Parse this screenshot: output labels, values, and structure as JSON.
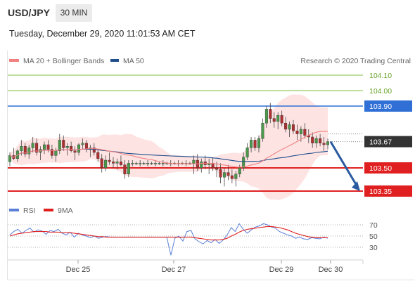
{
  "header": {
    "symbol": "USD/JPY",
    "timeframe": "30 MIN",
    "timestamp": "Tuesday, December 29, 2020 11:01:53 AM CET"
  },
  "legend": {
    "ma20_label": "MA 20 + Bollinger Bands",
    "ma50_label": "MA 50",
    "credit": "Research © 2020 Trading Central",
    "ma20_color": "#f08080",
    "ma50_color": "#1f4e8c"
  },
  "oscillator_legend": {
    "rsi_label": "RSI",
    "ma_label": "9MA",
    "rsi_color": "#5a7fd6",
    "ma_color": "#e02020"
  },
  "chart_data": {
    "type": "candlestick",
    "price_range": [
      103.25,
      104.15
    ],
    "levels": [
      {
        "value": "104.10",
        "color": "#7fbf3f",
        "kind": "target"
      },
      {
        "value": "104.00",
        "color": "#7fbf3f",
        "kind": "target"
      },
      {
        "value": "103.90",
        "color": "#2f6fd6",
        "kind": "pivot"
      },
      {
        "value": "103.67",
        "color": "#333333",
        "kind": "last"
      },
      {
        "value": "103.50",
        "color": "#e02020",
        "kind": "support"
      },
      {
        "value": "103.35",
        "color": "#e02020",
        "kind": "support"
      }
    ],
    "x_ticks": [
      "Dec 25",
      "Dec 27",
      "Dec 29",
      "Dec 30"
    ],
    "rsi_levels": [
      "70",
      "50",
      "30"
    ],
    "projection": {
      "from": 103.67,
      "to": 103.35
    },
    "candles": [
      [
        103.54,
        103.6,
        103.51,
        103.58
      ],
      [
        103.58,
        103.63,
        103.55,
        103.56
      ],
      [
        103.56,
        103.62,
        103.54,
        103.61
      ],
      [
        103.61,
        103.68,
        103.58,
        103.64
      ],
      [
        103.64,
        103.66,
        103.57,
        103.59
      ],
      [
        103.59,
        103.65,
        103.56,
        103.63
      ],
      [
        103.63,
        103.7,
        103.6,
        103.66
      ],
      [
        103.66,
        103.69,
        103.58,
        103.6
      ],
      [
        103.6,
        103.64,
        103.55,
        103.62
      ],
      [
        103.62,
        103.67,
        103.59,
        103.65
      ],
      [
        103.65,
        103.68,
        103.6,
        103.62
      ],
      [
        103.62,
        103.65,
        103.56,
        103.58
      ],
      [
        103.58,
        103.63,
        103.54,
        103.61
      ],
      [
        103.61,
        103.72,
        103.59,
        103.68
      ],
      [
        103.68,
        103.71,
        103.61,
        103.63
      ],
      [
        103.63,
        103.66,
        103.58,
        103.64
      ],
      [
        103.64,
        103.67,
        103.6,
        103.61
      ],
      [
        103.61,
        103.64,
        103.55,
        103.6
      ],
      [
        103.6,
        103.66,
        103.58,
        103.65
      ],
      [
        103.65,
        103.69,
        103.62,
        103.66
      ],
      [
        103.66,
        103.68,
        103.6,
        103.62
      ],
      [
        103.62,
        103.65,
        103.57,
        103.63
      ],
      [
        103.63,
        103.66,
        103.58,
        103.6
      ],
      [
        103.6,
        103.62,
        103.54,
        103.56
      ],
      [
        103.56,
        103.59,
        103.47,
        103.5
      ],
      [
        103.5,
        103.58,
        103.48,
        103.55
      ],
      [
        103.55,
        103.6,
        103.52,
        103.54
      ],
      [
        103.54,
        103.57,
        103.5,
        103.53
      ],
      [
        103.53,
        103.56,
        103.49,
        103.54
      ],
      [
        103.54,
        103.58,
        103.51,
        103.52
      ],
      [
        103.52,
        103.55,
        103.43,
        103.46
      ],
      [
        103.46,
        103.55,
        103.44,
        103.53
      ],
      [
        103.53,
        103.55,
        103.51,
        103.53
      ],
      [
        103.53,
        103.54,
        103.52,
        103.53
      ],
      [
        103.53,
        103.55,
        103.51,
        103.53
      ],
      [
        103.53,
        103.54,
        103.52,
        103.53
      ],
      [
        103.53,
        103.55,
        103.51,
        103.53
      ],
      [
        103.53,
        103.54,
        103.52,
        103.53
      ],
      [
        103.53,
        103.55,
        103.51,
        103.53
      ],
      [
        103.53,
        103.54,
        103.52,
        103.53
      ],
      [
        103.53,
        103.55,
        103.51,
        103.53
      ],
      [
        103.53,
        103.54,
        103.52,
        103.53
      ],
      [
        103.53,
        103.55,
        103.51,
        103.53
      ],
      [
        103.53,
        103.54,
        103.52,
        103.53
      ],
      [
        103.53,
        103.55,
        103.51,
        103.53
      ],
      [
        103.53,
        103.54,
        103.52,
        103.53
      ],
      [
        103.53,
        103.55,
        103.51,
        103.53
      ],
      [
        103.53,
        103.54,
        103.52,
        103.53
      ],
      [
        103.53,
        103.58,
        103.46,
        103.55
      ],
      [
        103.55,
        103.59,
        103.48,
        103.5
      ],
      [
        103.5,
        103.56,
        103.47,
        103.54
      ],
      [
        103.54,
        103.58,
        103.49,
        103.52
      ],
      [
        103.52,
        103.56,
        103.46,
        103.53
      ],
      [
        103.53,
        103.57,
        103.48,
        103.5
      ],
      [
        103.5,
        103.54,
        103.44,
        103.49
      ],
      [
        103.49,
        103.53,
        103.4,
        103.44
      ],
      [
        103.44,
        103.5,
        103.38,
        103.47
      ],
      [
        103.47,
        103.52,
        103.42,
        103.45
      ],
      [
        103.45,
        103.49,
        103.4,
        103.43
      ],
      [
        103.43,
        103.48,
        103.38,
        103.46
      ],
      [
        103.46,
        103.52,
        103.44,
        103.5
      ],
      [
        103.5,
        103.6,
        103.48,
        103.57
      ],
      [
        103.57,
        103.66,
        103.55,
        103.63
      ],
      [
        103.63,
        103.7,
        103.6,
        103.68
      ],
      [
        103.68,
        103.7,
        103.61,
        103.63
      ],
      [
        103.63,
        103.71,
        103.6,
        103.69
      ],
      [
        103.69,
        103.82,
        103.67,
        103.79
      ],
      [
        103.79,
        103.9,
        103.76,
        103.88
      ],
      [
        103.88,
        103.92,
        103.79,
        103.82
      ],
      [
        103.82,
        103.86,
        103.76,
        103.8
      ],
      [
        103.8,
        103.86,
        103.75,
        103.84
      ],
      [
        103.84,
        103.87,
        103.77,
        103.79
      ],
      [
        103.79,
        103.83,
        103.73,
        103.75
      ],
      [
        103.75,
        103.8,
        103.7,
        103.78
      ],
      [
        103.78,
        103.81,
        103.72,
        103.74
      ],
      [
        103.74,
        103.78,
        103.68,
        103.72
      ],
      [
        103.72,
        103.77,
        103.67,
        103.75
      ],
      [
        103.75,
        103.79,
        103.69,
        103.71
      ],
      [
        103.71,
        103.75,
        103.66,
        103.7
      ],
      [
        103.7,
        103.73,
        103.63,
        103.66
      ],
      [
        103.66,
        103.71,
        103.63,
        103.69
      ],
      [
        103.69,
        103.72,
        103.64,
        103.66
      ],
      [
        103.66,
        103.7,
        103.61,
        103.65
      ],
      [
        103.65,
        103.69,
        103.62,
        103.67
      ]
    ],
    "rsi": [
      52,
      58,
      62,
      55,
      60,
      64,
      57,
      61,
      59,
      53,
      60,
      58,
      62,
      55,
      52,
      57,
      48,
      55,
      52,
      50,
      47,
      50,
      46,
      48,
      49,
      48,
      48,
      48,
      48,
      48,
      48,
      48,
      48,
      48,
      48,
      48,
      48,
      48,
      48,
      48,
      16,
      46,
      50,
      41,
      58,
      60,
      45,
      40,
      36,
      42,
      38,
      44,
      37,
      43,
      52,
      65,
      58,
      72,
      62,
      55,
      61,
      66,
      68,
      72,
      70,
      66,
      64,
      58,
      55,
      52,
      50,
      46,
      48,
      45,
      44,
      47,
      46,
      45,
      48,
      46
    ],
    "rsi_ma": [
      50,
      52,
      54,
      55,
      56,
      57,
      58,
      58,
      58,
      58,
      57,
      57,
      57,
      56,
      56,
      56,
      55,
      54,
      53,
      52,
      51,
      50,
      49,
      49,
      48,
      48,
      48,
      48,
      48,
      48,
      48,
      48,
      48,
      48,
      48,
      48,
      48,
      48,
      48,
      48,
      48,
      48,
      48,
      48,
      48,
      48,
      47,
      46,
      45,
      44,
      43,
      43,
      43,
      44,
      46,
      50,
      53,
      57,
      60,
      62,
      63,
      64,
      65,
      66,
      67,
      67,
      66,
      65,
      63,
      61,
      58,
      55,
      53,
      51,
      49,
      48,
      47,
      47,
      47,
      47
    ]
  }
}
